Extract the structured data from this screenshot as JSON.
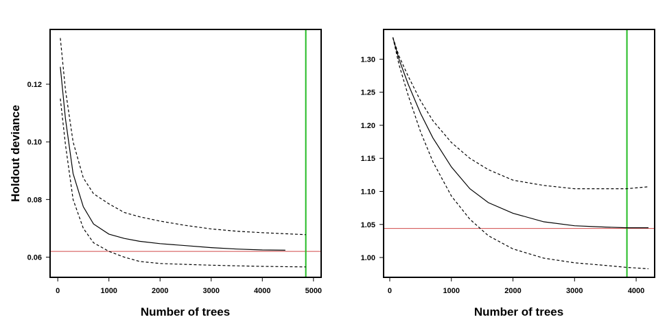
{
  "chart_data": [
    {
      "type": "line",
      "xlabel": "Number of trees",
      "ylabel": "Holdout deviance",
      "xlim": [
        -150,
        5150
      ],
      "ylim": [
        0.053,
        0.139
      ],
      "xticks": [
        0,
        1000,
        2000,
        3000,
        4000,
        5000
      ],
      "xtick_labels": [
        "0",
        "1000",
        "2000",
        "3000",
        "4000",
        "5000"
      ],
      "yticks": [
        0.06,
        0.08,
        0.1,
        0.12
      ],
      "ytick_labels": [
        "0.06",
        "0.08",
        "0.10",
        "0.12"
      ],
      "grid": false,
      "series": [
        {
          "style": "solid",
          "color": "#000000",
          "x": [
            50,
            150,
            300,
            500,
            700,
            1000,
            1300,
            1600,
            2000,
            2500,
            3000,
            3500,
            4000,
            4450
          ],
          "y": [
            0.126,
            0.108,
            0.089,
            0.0775,
            0.0715,
            0.068,
            0.0665,
            0.0655,
            0.0647,
            0.064,
            0.0633,
            0.0628,
            0.0625,
            0.0624
          ]
        },
        {
          "style": "dashed",
          "color": "#000000",
          "x": [
            50,
            150,
            300,
            500,
            700,
            1000,
            1300,
            1600,
            2000,
            2500,
            3000,
            3500,
            4000,
            4850
          ],
          "y": [
            0.136,
            0.118,
            0.1,
            0.0875,
            0.082,
            0.0785,
            0.0755,
            0.074,
            0.0725,
            0.071,
            0.0698,
            0.069,
            0.0685,
            0.0678
          ]
        },
        {
          "style": "dashed",
          "color": "#000000",
          "x": [
            50,
            150,
            300,
            500,
            700,
            1000,
            1300,
            1600,
            2000,
            2500,
            3000,
            3500,
            4000,
            4850
          ],
          "y": [
            0.115,
            0.099,
            0.08,
            0.07,
            0.065,
            0.062,
            0.06,
            0.0585,
            0.0578,
            0.0575,
            0.0572,
            0.057,
            0.0568,
            0.0566
          ]
        }
      ],
      "hline": {
        "y": 0.062,
        "color": "#d04848"
      },
      "vline": {
        "x": 4850,
        "color": "#22bb22"
      }
    },
    {
      "type": "line",
      "xlabel": "Number of trees",
      "ylabel": "",
      "xlim": [
        -100,
        4300
      ],
      "ylim": [
        0.97,
        1.345
      ],
      "xticks": [
        0,
        1000,
        2000,
        3000,
        4000
      ],
      "xtick_labels": [
        "0",
        "1000",
        "2000",
        "3000",
        "4000"
      ],
      "yticks": [
        1.0,
        1.05,
        1.1,
        1.15,
        1.2,
        1.25,
        1.3
      ],
      "ytick_labels": [
        "1.00",
        "1.05",
        "1.10",
        "1.15",
        "1.20",
        "1.25",
        "1.30"
      ],
      "grid": false,
      "series": [
        {
          "style": "solid",
          "color": "#000000",
          "x": [
            50,
            150,
            300,
            500,
            700,
            1000,
            1300,
            1600,
            2000,
            2500,
            3000,
            3500,
            3850,
            4200
          ],
          "y": [
            1.333,
            1.3,
            1.262,
            1.218,
            1.181,
            1.137,
            1.104,
            1.083,
            1.067,
            1.054,
            1.048,
            1.046,
            1.045,
            1.045
          ]
        },
        {
          "style": "dashed",
          "color": "#000000",
          "x": [
            50,
            150,
            300,
            500,
            700,
            1000,
            1300,
            1600,
            2000,
            2500,
            3000,
            3500,
            3850,
            4200
          ],
          "y": [
            1.333,
            1.305,
            1.274,
            1.237,
            1.207,
            1.174,
            1.15,
            1.133,
            1.117,
            1.109,
            1.104,
            1.104,
            1.104,
            1.107
          ]
        },
        {
          "style": "dashed",
          "color": "#000000",
          "x": [
            50,
            150,
            300,
            500,
            700,
            1000,
            1300,
            1600,
            2000,
            2500,
            3000,
            3500,
            3850,
            4200
          ],
          "y": [
            1.333,
            1.292,
            1.245,
            1.19,
            1.145,
            1.093,
            1.058,
            1.033,
            1.013,
            0.999,
            0.992,
            0.988,
            0.985,
            0.983
          ]
        }
      ],
      "hline": {
        "y": 1.044,
        "color": "#d04848"
      },
      "vline": {
        "x": 3850,
        "color": "#22bb22"
      }
    }
  ]
}
